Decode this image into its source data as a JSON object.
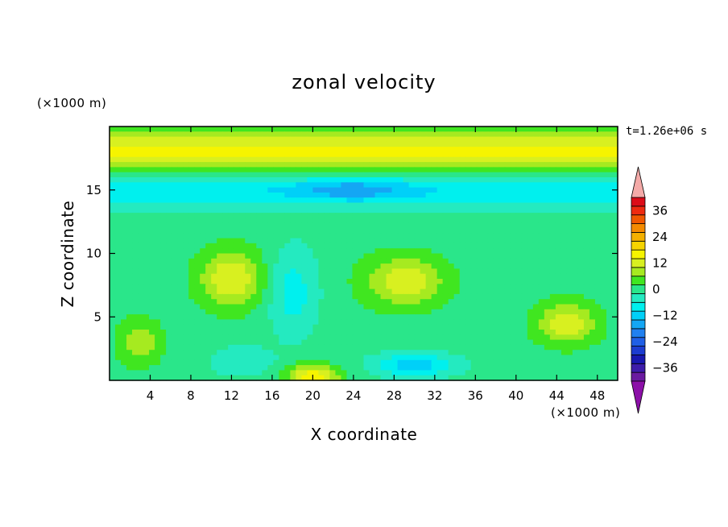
{
  "chart_data": {
    "type": "heatmap",
    "title": "zonal velocity",
    "xlabel": "X coordinate",
    "ylabel": "Z coordinate",
    "x_unit": "(×1000 m)",
    "y_unit": "(×1000 m)",
    "time_label": "t=1.26e+06 s",
    "xlim": [
      0,
      50
    ],
    "ylim": [
      0,
      20
    ],
    "x_ticks": [
      4,
      8,
      12,
      16,
      20,
      24,
      28,
      32,
      36,
      40,
      44,
      48
    ],
    "y_ticks": [
      5,
      10,
      15
    ],
    "colorbar": {
      "min": -42,
      "max": 42,
      "step": 4,
      "tick_values": [
        -36,
        -24,
        -12,
        0,
        12,
        24,
        36
      ],
      "levels": [
        {
          "lo": -42,
          "hi": -38,
          "color": "#6a1aa0"
        },
        {
          "lo": -38,
          "hi": -34,
          "color": "#3d1caa"
        },
        {
          "lo": -34,
          "hi": -30,
          "color": "#1818b0"
        },
        {
          "lo": -30,
          "hi": -26,
          "color": "#1c3cd0"
        },
        {
          "lo": -26,
          "hi": -22,
          "color": "#1f5fe6"
        },
        {
          "lo": -22,
          "hi": -18,
          "color": "#2080f0"
        },
        {
          "lo": -18,
          "hi": -14,
          "color": "#14a6f4"
        },
        {
          "lo": -14,
          "hi": -10,
          "color": "#00d0f8"
        },
        {
          "lo": -10,
          "hi": -6,
          "color": "#00f0ee"
        },
        {
          "lo": -6,
          "hi": -2,
          "color": "#24eac0"
        },
        {
          "lo": -2,
          "hi": 2,
          "color": "#2ae68a"
        },
        {
          "lo": 2,
          "hi": 6,
          "color": "#40e620"
        },
        {
          "lo": 6,
          "hi": 10,
          "color": "#a6ea20"
        },
        {
          "lo": 10,
          "hi": 14,
          "color": "#d8f020"
        },
        {
          "lo": 14,
          "hi": 18,
          "color": "#f6f400"
        },
        {
          "lo": 18,
          "hi": 22,
          "color": "#f6d400"
        },
        {
          "lo": 22,
          "hi": 26,
          "color": "#f4b000"
        },
        {
          "lo": 26,
          "hi": 30,
          "color": "#f48a00"
        },
        {
          "lo": 30,
          "hi": 34,
          "color": "#f05800"
        },
        {
          "lo": 34,
          "hi": 38,
          "color": "#ee2a10"
        },
        {
          "lo": 38,
          "hi": 42,
          "color": "#dc0c18"
        }
      ],
      "over_color": "#f4aaa8",
      "under_color": "#8c10a8"
    },
    "field_components": [
      {
        "shape": "band",
        "z0": 18,
        "thickness": 1.6,
        "amplitude": 16
      },
      {
        "shape": "band",
        "z0": 15,
        "thickness": 1.4,
        "amplitude": -10
      },
      {
        "shape": "blob",
        "x0": 12,
        "z0": 8,
        "sx": 3.2,
        "sz": 2.3,
        "amplitude": 14
      },
      {
        "shape": "blob",
        "x0": 29,
        "z0": 7.8,
        "sx": 4,
        "sz": 2,
        "amplitude": 13
      },
      {
        "shape": "blob",
        "x0": 45,
        "z0": 4.5,
        "sx": 3,
        "sz": 1.7,
        "amplitude": 13
      },
      {
        "shape": "blob",
        "x0": 3,
        "z0": 3,
        "sx": 2.2,
        "sz": 1.8,
        "amplitude": 9
      },
      {
        "shape": "blob",
        "x0": 20,
        "z0": 0.3,
        "sx": 2.5,
        "sz": 0.9,
        "amplitude": 17
      },
      {
        "shape": "blob",
        "x0": 18,
        "z0": 7,
        "sx": 2.5,
        "sz": 3.5,
        "amplitude": -8
      },
      {
        "shape": "blob",
        "x0": 30,
        "z0": 1.2,
        "sx": 4,
        "sz": 1,
        "amplitude": -12
      },
      {
        "shape": "blob",
        "x0": 13,
        "z0": 1.5,
        "sx": 3,
        "sz": 1.2,
        "amplitude": -6
      },
      {
        "shape": "blob",
        "x0": 24,
        "z0": 15,
        "sx": 5,
        "sz": 0.8,
        "amplitude": -8
      }
    ]
  }
}
